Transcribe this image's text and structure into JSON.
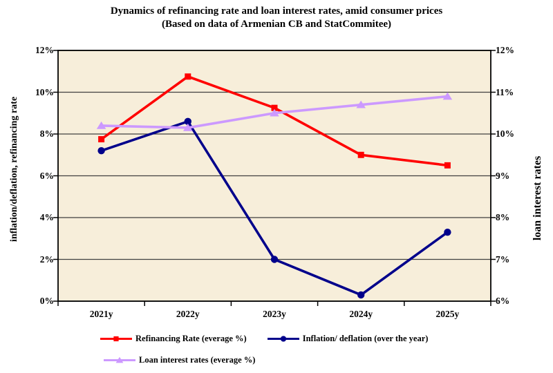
{
  "title": {
    "line1": "Dynamics of refinancing rate and loan interest rates, amid consumer prices",
    "line2": "(Based on data of Armenian CB and StatCommitee)"
  },
  "chart_data": {
    "type": "line",
    "categories": [
      "2021y",
      "2022y",
      "2023y",
      "2024y",
      "2025y"
    ],
    "left_axis": {
      "label": "inflation/deflation, refinancing rate",
      "ticks": [
        "0%",
        "2%",
        "4%",
        "6%",
        "8%",
        "10%",
        "12%"
      ],
      "min": 0,
      "max": 12
    },
    "right_axis": {
      "label": "loan interest rates",
      "ticks": [
        "6%",
        "7%",
        "8%",
        "9%",
        "10%",
        "11%",
        "12%"
      ],
      "min": 6,
      "max": 12
    },
    "series": [
      {
        "name": "Refinancing Rate (everage %)",
        "axis": "left",
        "color": "#FF0000",
        "marker": "square",
        "values": [
          7.75,
          10.75,
          9.25,
          7.0,
          6.5
        ]
      },
      {
        "name": "Inflation/ deflation (over the year)",
        "axis": "left",
        "color": "#00008B",
        "marker": "circle",
        "values": [
          7.2,
          8.6,
          2.0,
          0.3,
          3.3
        ]
      },
      {
        "name": "Loan interest rates (everage %)",
        "axis": "right",
        "color": "#CC99FF",
        "marker": "triangle",
        "values": [
          10.2,
          10.15,
          10.5,
          10.7,
          10.9
        ]
      }
    ],
    "plot_bg": "#F7EEDA",
    "grid_color": "#3F3F3F",
    "axis_color": "#000000",
    "legend_position": "bottom",
    "grid": "horizontal"
  }
}
